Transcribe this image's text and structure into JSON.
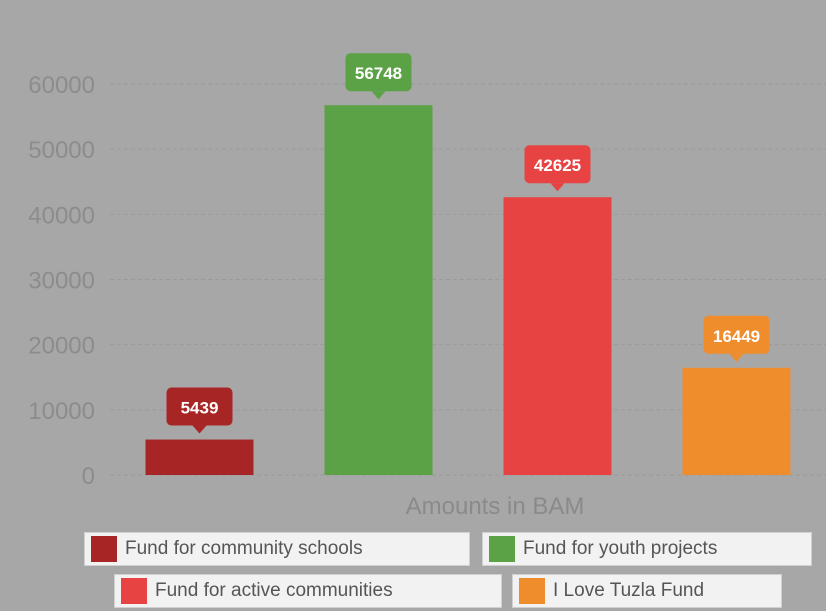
{
  "chart_data": {
    "type": "bar",
    "categories": [
      "Fund for community schools",
      "Fund for youth projects",
      "Fund for active communities",
      "I Love Tuzla Fund"
    ],
    "values": [
      5439,
      56748,
      42625,
      16449
    ],
    "value_labels": [
      "5439",
      "56748",
      "42625",
      "16449"
    ],
    "colors": [
      "#a82525",
      "#5ba246",
      "#e84343",
      "#ef8d2c"
    ],
    "xlabel": "Amounts in BAM",
    "ylabel": "",
    "ylim": [
      0,
      60000
    ],
    "yticks": [
      "0",
      "10000",
      "20000",
      "30000",
      "40000",
      "50000",
      "60000"
    ],
    "grid": true,
    "legend_position": "bottom"
  }
}
